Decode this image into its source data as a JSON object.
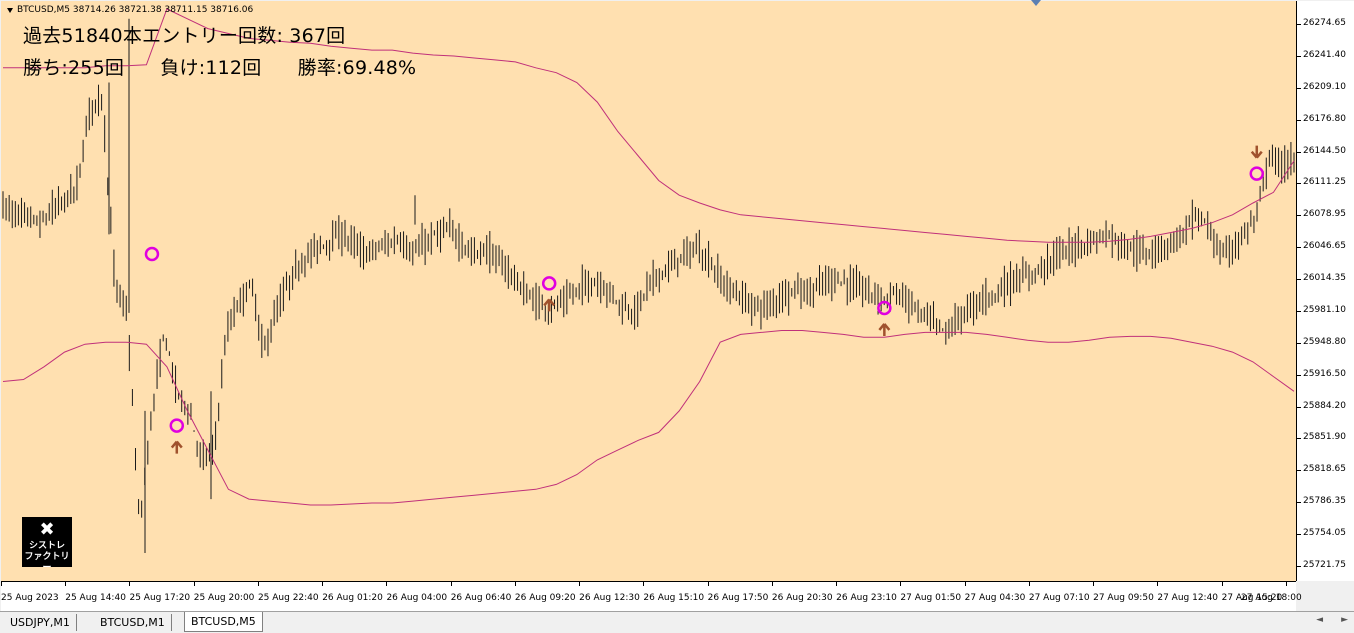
{
  "window": {
    "symbol_info": "BTCUSD,M5  38714.26 38721.38 38711.15 38716.06"
  },
  "stats": {
    "line1": "過去51840本エントリー回数: 367回",
    "wins": "勝ち:255回",
    "losses": "負け:112回",
    "winrate": "勝率:69.48%"
  },
  "logo": {
    "icon": "tools-icon",
    "line1": "シストレ",
    "line2": "ファクトリー"
  },
  "colors": {
    "background": "#ffe0b0",
    "candles": "#1a1a1a",
    "bollinger": "#c0307a",
    "signal_circle": "#e000e0",
    "arrow": "#a0522d"
  },
  "chart_data": {
    "type": "candlestick",
    "y_ticks": [
      "26274.65",
      "26241.40",
      "26209.10",
      "26176.80",
      "26144.50",
      "26111.25",
      "26078.95",
      "26046.65",
      "26014.35",
      "25981.10",
      "25948.80",
      "25916.50",
      "25884.20",
      "25851.90",
      "25818.65",
      "25786.35",
      "25754.05",
      "25721.75"
    ],
    "ylim": [
      25721.75,
      26274.65
    ],
    "x_ticks": [
      "25 Aug 2023",
      "25 Aug 14:40",
      "25 Aug 17:20",
      "25 Aug 20:00",
      "25 Aug 22:40",
      "26 Aug 01:20",
      "26 Aug 04:00",
      "26 Aug 06:40",
      "26 Aug 09:20",
      "26 Aug 12:30",
      "26 Aug 15:10",
      "26 Aug 17:50",
      "26 Aug 20:30",
      "26 Aug 23:10",
      "27 Aug 01:50",
      "27 Aug 04:30",
      "27 Aug 07:10",
      "27 Aug 09:50",
      "27 Aug 12:40",
      "27 Aug 15:20",
      "27 Aug 18:00"
    ],
    "price_path": [
      26090,
      26080,
      26078,
      26070,
      26085,
      26095,
      26110,
      26190,
      26200,
      26010,
      25980,
      25760,
      25880,
      25960,
      25900,
      25880,
      25830,
      25840,
      25960,
      25990,
      26010,
      25940,
      25980,
      26010,
      26030,
      26045,
      26050,
      26060,
      26055,
      26040,
      26045,
      26050,
      26055,
      26040,
      26050,
      26060,
      26065,
      26050,
      26040,
      26045,
      26030,
      26020,
      26000,
      25990,
      25985,
      25990,
      26000,
      26010,
      26010,
      26000,
      25985,
      25980,
      26010,
      26020,
      26030,
      26040,
      26045,
      26030,
      26010,
      26000,
      25990,
      25985,
      25990,
      26000,
      26005,
      26000,
      26010,
      26015,
      26010,
      26005,
      26000,
      25995,
      26000,
      25990,
      25980,
      25970,
      25960,
      25975,
      25985,
      25995,
      26000,
      26010,
      26015,
      26020,
      26030,
      26040,
      26045,
      26050,
      26055,
      26060,
      26050,
      26045,
      26040,
      26045,
      26050,
      26060,
      26080,
      26070,
      26040,
      26045,
      26060,
      26080,
      26140,
      26130,
      26135
    ],
    "bollinger_upper": [
      26230,
      26230,
      26230,
      26230,
      26230,
      26232,
      26232,
      26233,
      26290,
      26280,
      26270,
      26265,
      26260,
      26258,
      26256,
      26255,
      26252,
      26250,
      26248,
      26248,
      26245,
      26243,
      26242,
      26240,
      26238,
      26236,
      26230,
      26225,
      26215,
      26195,
      26165,
      26140,
      26115,
      26100,
      26092,
      26085,
      26080,
      26078,
      26076,
      26074,
      26072,
      26070,
      26068,
      26066,
      26064,
      26062,
      26060,
      26058,
      26056,
      26054,
      26053,
      26052,
      26052,
      26052,
      26053,
      26055,
      26058,
      26062,
      26066,
      26072,
      26080,
      26092,
      26103,
      26135
    ],
    "bollinger_lower": [
      25910,
      25912,
      25925,
      25940,
      25948,
      25950,
      25950,
      25948,
      25925,
      25880,
      25840,
      25800,
      25790,
      25788,
      25786,
      25784,
      25784,
      25785,
      25786,
      25786,
      25788,
      25790,
      25792,
      25794,
      25796,
      25798,
      25800,
      25805,
      25815,
      25830,
      25840,
      25850,
      25858,
      25880,
      25910,
      25950,
      25958,
      25960,
      25962,
      25962,
      25960,
      25958,
      25955,
      25955,
      25958,
      25960,
      25960,
      25960,
      25958,
      25955,
      25952,
      25950,
      25950,
      25952,
      25955,
      25956,
      25956,
      25954,
      25950,
      25946,
      25940,
      25930,
      25915,
      25900
    ],
    "signals": [
      {
        "index": 12,
        "price": 26040,
        "direction": "none"
      },
      {
        "index": 14,
        "price": 25865,
        "direction": "buy"
      },
      {
        "index": 44,
        "price": 26010,
        "direction": "buy"
      },
      {
        "index": 71,
        "price": 25985,
        "direction": "buy"
      },
      {
        "index": 101,
        "price": 26122,
        "direction": "sell"
      }
    ]
  },
  "tabs": [
    {
      "label": "USDJPY,M1"
    },
    {
      "label": "BTCUSD,M1"
    },
    {
      "label": "BTCUSD,M5"
    }
  ]
}
